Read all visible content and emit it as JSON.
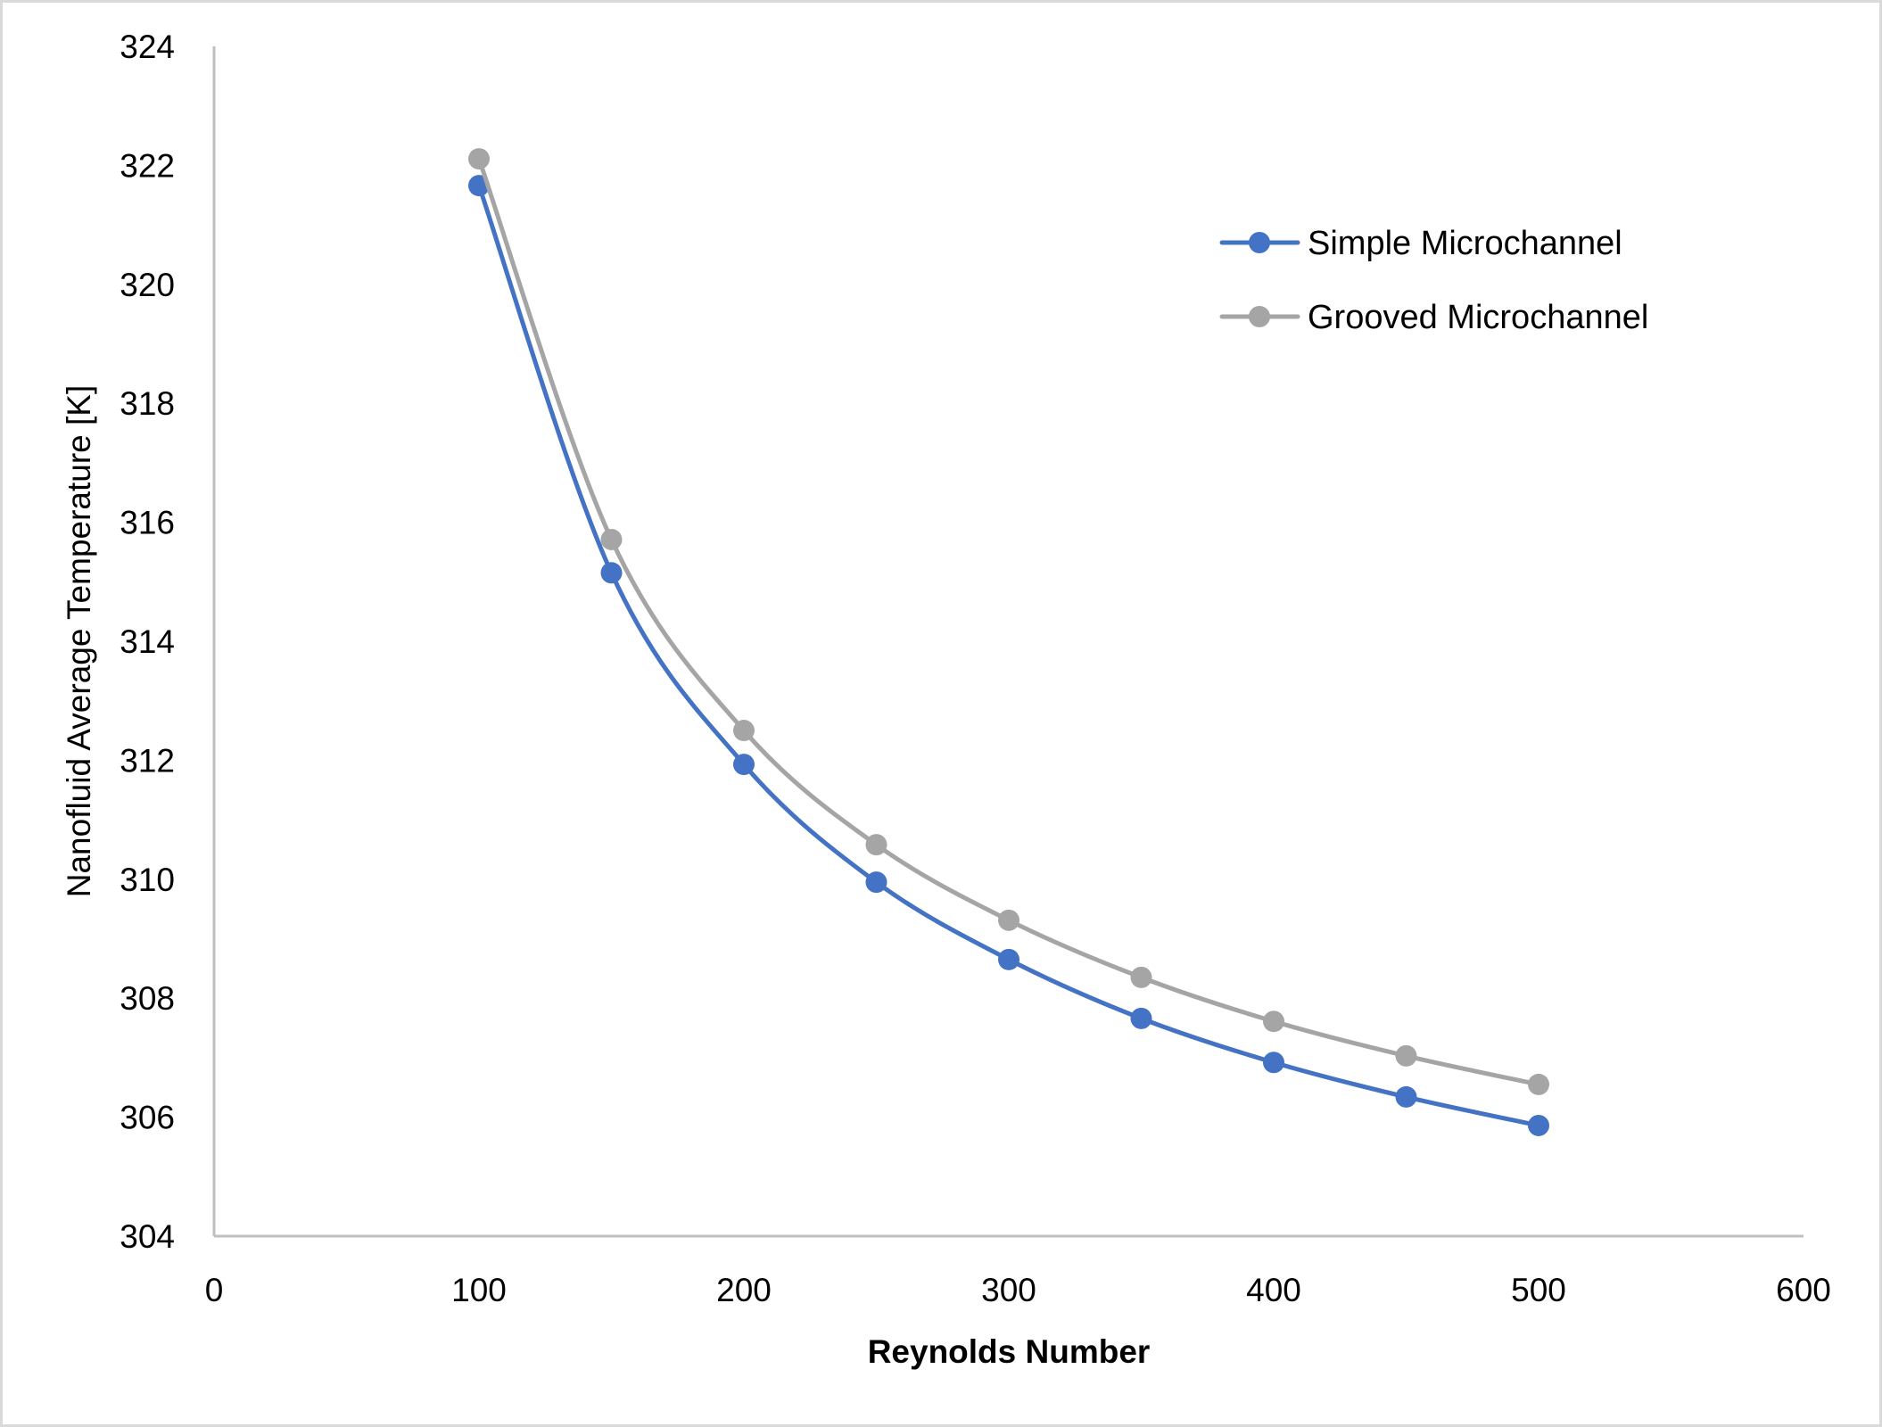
{
  "chart_data": {
    "type": "line",
    "title": "",
    "xlabel": "Reynolds Number",
    "ylabel": "Nanofluid Average Temperature [K]",
    "xlim": [
      0,
      600
    ],
    "ylim": [
      304,
      324
    ],
    "x_ticks": [
      0,
      100,
      200,
      300,
      400,
      500,
      600
    ],
    "y_ticks": [
      304,
      306,
      308,
      310,
      312,
      314,
      316,
      318,
      320,
      322,
      324
    ],
    "grid": false,
    "smoothed": true,
    "legend_position": "upper right (inside plot)",
    "x": [
      100,
      150,
      200,
      250,
      300,
      350,
      400,
      450,
      500
    ],
    "series": [
      {
        "name": "Simple Microchannel",
        "color": "#4472C4",
        "values": [
          321.66,
          315.15,
          311.93,
          309.95,
          308.65,
          307.66,
          306.92,
          306.34,
          305.86
        ]
      },
      {
        "name": "Grooved Microchannel",
        "color": "#A5A5A5",
        "values": [
          322.11,
          315.71,
          312.5,
          310.58,
          309.31,
          308.35,
          307.61,
          307.03,
          306.55
        ]
      }
    ]
  },
  "labels": {
    "x_title": "Reynolds Number",
    "y_title": "Nanofluid Average Temperature [K]",
    "legend": [
      "Simple Microchannel",
      "Grooved Microchannel"
    ]
  },
  "colors": {
    "axis": "#BFBFBF",
    "border": "#D9D9D9",
    "simple": "#4472C4",
    "grooved": "#A5A5A5"
  }
}
